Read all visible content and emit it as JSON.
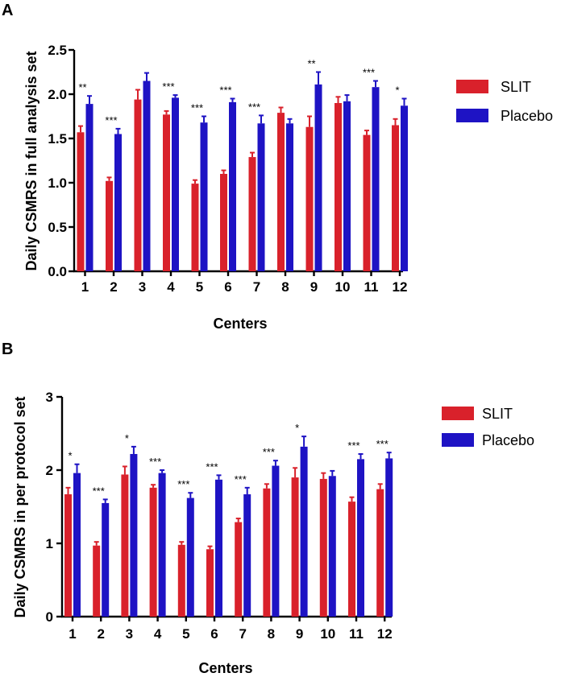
{
  "chart_data": [
    {
      "panel": "A",
      "type": "bar",
      "ylabel": "Daily CSMRS in full analysis set",
      "xlabel": "Centers",
      "ylim": [
        0,
        2.5
      ],
      "yticks": [
        "0.0",
        "0.5",
        "1.0",
        "1.5",
        "2.0",
        "2.5"
      ],
      "categories": [
        "1",
        "2",
        "3",
        "4",
        "5",
        "6",
        "7",
        "8",
        "9",
        "10",
        "11",
        "12"
      ],
      "series": [
        {
          "name": "SLIT",
          "color": "#d9212b",
          "values": [
            1.57,
            1.02,
            1.94,
            1.77,
            0.99,
            1.1,
            1.29,
            1.79,
            1.63,
            1.9,
            1.54,
            1.65
          ],
          "errors": [
            0.07,
            0.04,
            0.11,
            0.04,
            0.04,
            0.04,
            0.05,
            0.06,
            0.12,
            0.07,
            0.05,
            0.07
          ]
        },
        {
          "name": "Placebo",
          "color": "#1e13c4",
          "values": [
            1.89,
            1.55,
            2.15,
            1.96,
            1.68,
            1.91,
            1.67,
            1.67,
            2.11,
            1.92,
            2.08,
            1.87
          ],
          "errors": [
            0.09,
            0.06,
            0.09,
            0.03,
            0.07,
            0.04,
            0.09,
            0.05,
            0.14,
            0.07,
            0.07,
            0.08
          ]
        }
      ],
      "significance": [
        "**",
        "***",
        "",
        "***",
        "***",
        "***",
        "***",
        "",
        "**",
        "",
        "***",
        "*"
      ]
    },
    {
      "panel": "B",
      "type": "bar",
      "ylabel": "Daily CSMRS in per protocol set",
      "xlabel": "Centers",
      "ylim": [
        0,
        3
      ],
      "yticks": [
        "0",
        "1",
        "2",
        "3"
      ],
      "categories": [
        "1",
        "2",
        "3",
        "4",
        "5",
        "6",
        "7",
        "8",
        "9",
        "10",
        "11",
        "12"
      ],
      "series": [
        {
          "name": "SLIT",
          "color": "#d9212b",
          "values": [
            1.67,
            0.97,
            1.94,
            1.76,
            0.98,
            0.92,
            1.29,
            1.75,
            1.9,
            1.88,
            1.57,
            1.74
          ],
          "errors": [
            0.09,
            0.05,
            0.11,
            0.04,
            0.04,
            0.04,
            0.05,
            0.06,
            0.13,
            0.08,
            0.06,
            0.07
          ]
        },
        {
          "name": "Placebo",
          "color": "#1e13c4",
          "values": [
            1.96,
            1.55,
            2.22,
            1.96,
            1.62,
            1.87,
            1.67,
            2.06,
            2.32,
            1.92,
            2.15,
            2.16
          ],
          "errors": [
            0.12,
            0.05,
            0.1,
            0.04,
            0.07,
            0.06,
            0.09,
            0.07,
            0.14,
            0.07,
            0.07,
            0.08
          ]
        }
      ],
      "significance": [
        "*",
        "***",
        "*",
        "***",
        "***",
        "***",
        "***",
        "***",
        "*",
        "",
        "***",
        "***"
      ]
    }
  ]
}
